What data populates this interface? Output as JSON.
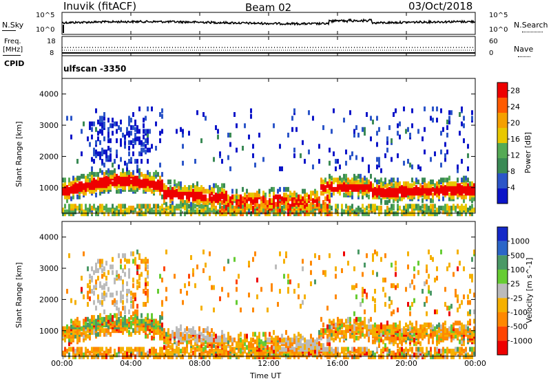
{
  "header": {
    "station": "Inuvik (fitACF)",
    "beam": "Beam 02",
    "date": "03/Oct/2018"
  },
  "noise_panel": {
    "left_label": "N.Sky",
    "left_ticks": [
      "10^5",
      "10^0"
    ],
    "right_ticks": [
      "10^5",
      "10^0"
    ],
    "right_label": "N.Search"
  },
  "freq_panel": {
    "left_label_1": "Freq.",
    "left_label_2": "[MHz]",
    "left_ticks": [
      "18",
      "8"
    ],
    "right_ticks": [
      "60",
      "0"
    ],
    "right_label": "Nave"
  },
  "cpid_panel": {
    "label": "CPID",
    "value": "ulfscan -3350"
  },
  "colors": {
    "power_scale": [
      "#0b14c8",
      "#2b55c8",
      "#3a8a55",
      "#55aa55",
      "#e8c800",
      "#f5a000",
      "#ff5a00",
      "#ee0000"
    ],
    "velocity_scale": [
      "#1428c8",
      "#2b66c8",
      "#4a9966",
      "#66cc33",
      "#bbbbbb",
      "#f5b000",
      "#ff8800",
      "#ff4400",
      "#ee0000"
    ]
  },
  "chart_data": [
    {
      "type": "heatmap",
      "title": "",
      "xlabel": "Time UT",
      "ylabel": "Slant Range [km]",
      "ylim": [
        180,
        4500
      ],
      "xlim": [
        "00:00",
        "24:00"
      ],
      "x_ticks": [
        "00:00",
        "04:00",
        "08:00",
        "12:00",
        "16:00",
        "20:00",
        "00:00"
      ],
      "y_ticks": [
        1000,
        2000,
        3000,
        4000
      ],
      "colorbar": {
        "label": "Power [dB]",
        "ticks": [
          4,
          8,
          12,
          16,
          20,
          24,
          28
        ],
        "range": [
          0,
          30
        ]
      }
    },
    {
      "type": "heatmap",
      "title": "",
      "xlabel": "Time UT",
      "ylabel": "Slant Range [km]",
      "ylim": [
        180,
        4500
      ],
      "xlim": [
        "00:00",
        "24:00"
      ],
      "x_ticks": [
        "00:00",
        "04:00",
        "08:00",
        "12:00",
        "16:00",
        "20:00",
        "00:00"
      ],
      "y_ticks": [
        1000,
        2000,
        3000,
        4000
      ],
      "colorbar": {
        "label": "Velocity [m s^-1]",
        "ticks": [
          1000,
          500,
          100,
          25,
          -25,
          -100,
          -500,
          -1000
        ]
      }
    }
  ]
}
